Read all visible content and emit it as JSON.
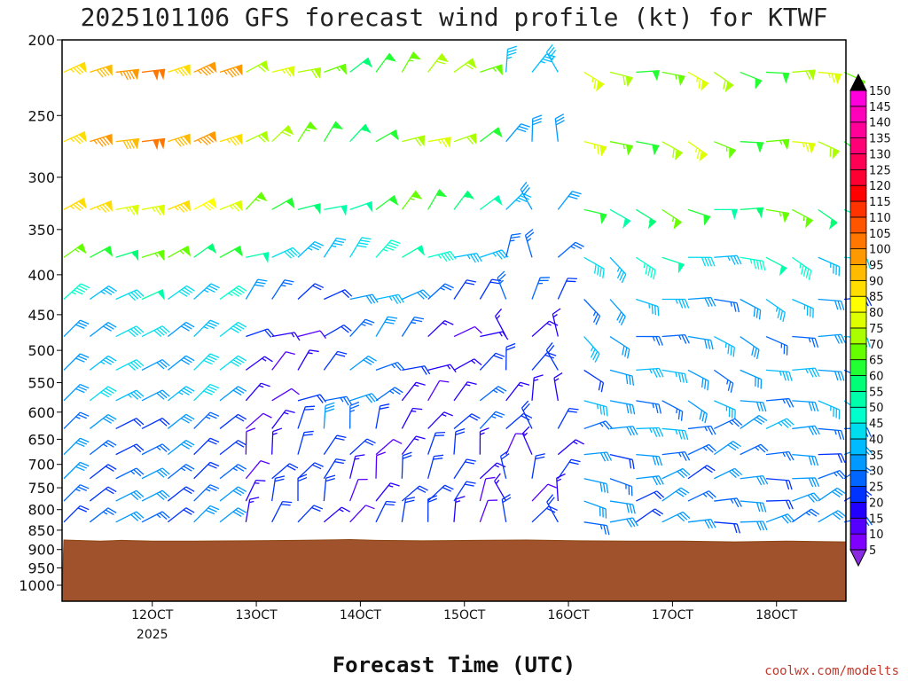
{
  "chart_data": {
    "type": "wind_barb_profile",
    "title": "2025101106 GFS forecast wind profile (kt) for KTWF",
    "xlabel": "Forecast Time (UTC)",
    "credit": "coolwx.com/modelts",
    "units": "kt",
    "y_levels_hpa": [
      "200",
      "250",
      "300",
      "350",
      "400",
      "450",
      "500",
      "550",
      "600",
      "650",
      "700",
      "750",
      "800",
      "850",
      "900",
      "950",
      "1000"
    ],
    "y_range_hpa": [
      1000,
      200
    ],
    "x_range_hours": [
      9.5,
      84.5
    ],
    "x_ticks": [
      {
        "label": "12OCT",
        "sub": "2025",
        "hour": 18
      },
      {
        "label": "13OCT",
        "sub": "",
        "hour": 28
      },
      {
        "label": "14OCT",
        "sub": "",
        "hour": 38
      },
      {
        "label": "15OCT",
        "sub": "",
        "hour": 48
      },
      {
        "label": "16OCT",
        "sub": "",
        "hour": 58
      },
      {
        "label": "17OCT",
        "sub": "",
        "hour": 68
      },
      {
        "label": "18OCT",
        "sub": "",
        "hour": 78
      }
    ],
    "barb_levels_hpa": [
      220,
      270,
      330,
      380,
      430,
      480,
      530,
      580,
      630,
      680,
      730,
      780,
      830
    ],
    "barb_hours": [
      9.5,
      12,
      14.5,
      17,
      19.5,
      22,
      24.5,
      27,
      29.5,
      32,
      34.5,
      37,
      39.5,
      42,
      44.5,
      47,
      49.5,
      52,
      54.5,
      57,
      59.5,
      62,
      64.5,
      67,
      69.5,
      72,
      74.5,
      77,
      79.5,
      82,
      84.5
    ],
    "surface_pressure_hpa": [
      {
        "h": 9.5,
        "p": 875
      },
      {
        "h": 13,
        "p": 878
      },
      {
        "h": 15,
        "p": 876
      },
      {
        "h": 18,
        "p": 878
      },
      {
        "h": 22,
        "p": 878
      },
      {
        "h": 27,
        "p": 877
      },
      {
        "h": 32,
        "p": 876
      },
      {
        "h": 37,
        "p": 874
      },
      {
        "h": 39.5,
        "p": 876
      },
      {
        "h": 44,
        "p": 877
      },
      {
        "h": 49,
        "p": 876
      },
      {
        "h": 54,
        "p": 875
      },
      {
        "h": 59,
        "p": 877
      },
      {
        "h": 64,
        "p": 878
      },
      {
        "h": 69,
        "p": 878
      },
      {
        "h": 74,
        "p": 880
      },
      {
        "h": 79,
        "p": 878
      },
      {
        "h": 84.5,
        "p": 880
      }
    ],
    "colorbar": {
      "labels": [
        "5",
        "10",
        "15",
        "20",
        "25",
        "30",
        "35",
        "40",
        "45",
        "50",
        "55",
        "60",
        "65",
        "70",
        "75",
        "80",
        "85",
        "90",
        "95",
        "100",
        "105",
        "110",
        "115",
        "120",
        "125",
        "130",
        "135",
        "140",
        "145",
        "150"
      ],
      "colors": [
        "#8a2be2",
        "#7f00ff",
        "#5500ff",
        "#2200ff",
        "#0033ff",
        "#0066ff",
        "#0099ff",
        "#00bbff",
        "#00ddee",
        "#00ffcc",
        "#00ffaa",
        "#00ff77",
        "#22ff33",
        "#66ff00",
        "#aaff00",
        "#ddff00",
        "#ffff00",
        "#ffdd00",
        "#ffbb00",
        "#ff9900",
        "#ff7700",
        "#ff5500",
        "#ff3300",
        "#ff0000",
        "#ff0033",
        "#ff0055",
        "#ff0077",
        "#ff0099",
        "#ff00bb",
        "#ff00dd",
        "#ff00ff"
      ]
    }
  }
}
